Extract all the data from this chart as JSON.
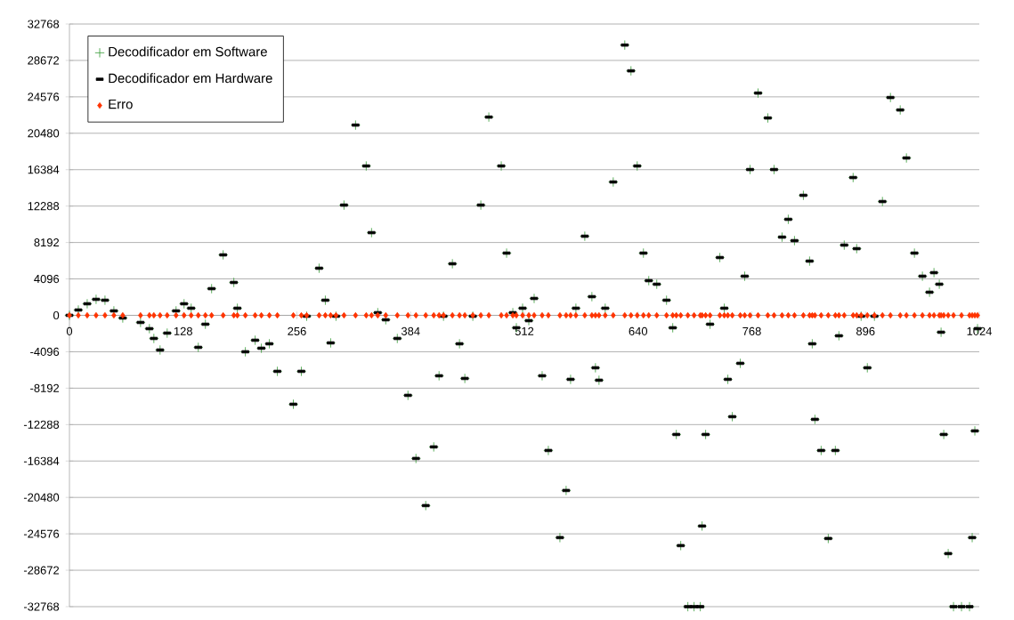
{
  "chart_data": {
    "type": "scatter",
    "x": [
      0,
      10,
      20,
      30,
      40,
      50,
      60,
      80,
      90,
      95,
      102,
      110,
      120,
      129,
      137,
      145,
      153,
      160,
      173,
      185,
      189,
      198,
      209,
      216,
      225,
      234,
      252,
      261,
      267,
      281,
      288,
      294,
      300,
      309,
      322,
      334,
      340,
      347,
      356,
      369,
      381,
      390,
      401,
      410,
      416,
      421,
      431,
      439,
      445,
      454,
      463,
      472,
      486,
      492,
      499,
      503,
      510,
      517,
      523,
      532,
      539,
      552,
      559,
      564,
      570,
      580,
      588,
      592,
      596,
      603,
      612,
      625,
      632,
      639,
      646,
      652,
      661,
      672,
      679,
      683,
      688,
      696,
      703,
      710,
      712,
      716,
      721,
      732,
      737,
      741,
      746,
      755,
      760,
      766,
      775,
      786,
      793,
      802,
      809,
      816,
      826,
      833,
      836,
      839,
      846,
      854,
      862,
      866,
      872,
      882,
      886,
      891,
      898,
      906,
      915,
      924,
      935,
      942,
      951,
      960,
      968,
      973,
      979,
      981,
      984,
      989,
      995,
      1004,
      1013,
      1016,
      1019,
      1022
    ],
    "series": [
      {
        "name": "Decodificador em Software",
        "color": "#339933",
        "marker": "cross",
        "values": [
          0,
          600,
          1300,
          1800,
          1700,
          500,
          -300,
          -800,
          -1500,
          -2600,
          -3900,
          -2000,
          500,
          1300,
          800,
          -3600,
          -1000,
          3000,
          6800,
          3700,
          800,
          -4100,
          -2800,
          -3700,
          -3200,
          -6300,
          -10000,
          -6300,
          -100,
          5300,
          1700,
          -3100,
          -100,
          12400,
          21400,
          16800,
          9300,
          300,
          -500,
          -2600,
          -9000,
          -16100,
          -21400,
          -14800,
          -6800,
          -100,
          5800,
          -3200,
          -7100,
          -100,
          12400,
          22300,
          16800,
          7000,
          300,
          -1400,
          800,
          -600,
          1900,
          -6800,
          -15200,
          -25000,
          -19700,
          -7200,
          800,
          8900,
          2100,
          -5900,
          -7300,
          800,
          15000,
          30400,
          27500,
          16800,
          7000,
          3900,
          3500,
          1700,
          -1400,
          -13400,
          -25900,
          -32768,
          -32768,
          -32768,
          -23700,
          -13400,
          -1000,
          6500,
          800,
          -7200,
          -11400,
          -5400,
          4400,
          16400,
          25000,
          22200,
          16400,
          8800,
          10800,
          8400,
          13500,
          6100,
          -3200,
          -11700,
          -15200,
          -25100,
          -15200,
          -2300,
          7900,
          15500,
          7500,
          -100,
          -5900,
          -100,
          12800,
          24500,
          23100,
          17700,
          7000,
          4400,
          2600,
          4800,
          3500,
          -1900,
          -13400,
          -26800,
          -32768,
          -32768,
          -32768,
          -25000,
          -13000,
          -1500
        ]
      },
      {
        "name": "Decodificador em Hardware",
        "color": "#000000",
        "marker": "square",
        "values": [
          0,
          600,
          1300,
          1800,
          1700,
          500,
          -300,
          -800,
          -1500,
          -2600,
          -3900,
          -2000,
          500,
          1300,
          800,
          -3600,
          -1000,
          3000,
          6800,
          3700,
          800,
          -4100,
          -2800,
          -3700,
          -3200,
          -6300,
          -10000,
          -6300,
          -100,
          5300,
          1700,
          -3100,
          -100,
          12400,
          21400,
          16800,
          9300,
          300,
          -500,
          -2600,
          -9000,
          -16100,
          -21400,
          -14800,
          -6800,
          -100,
          5800,
          -3200,
          -7100,
          -100,
          12400,
          22300,
          16800,
          7000,
          300,
          -1400,
          800,
          -600,
          1900,
          -6800,
          -15200,
          -25000,
          -19700,
          -7200,
          800,
          8900,
          2100,
          -5900,
          -7300,
          800,
          15000,
          30400,
          27500,
          16800,
          7000,
          3900,
          3500,
          1700,
          -1400,
          -13400,
          -25900,
          -32768,
          -32768,
          -32768,
          -23700,
          -13400,
          -1000,
          6500,
          800,
          -7200,
          -11400,
          -5400,
          4400,
          16400,
          25000,
          22200,
          16400,
          8800,
          10800,
          8400,
          13500,
          6100,
          -3200,
          -11700,
          -15200,
          -25100,
          -15200,
          -2300,
          7900,
          15500,
          7500,
          -100,
          -5900,
          -100,
          12800,
          24500,
          23100,
          17700,
          7000,
          4400,
          2600,
          4800,
          3500,
          -1900,
          -13400,
          -26800,
          -32768,
          -32768,
          -32768,
          -25000,
          -13000,
          -1500
        ]
      },
      {
        "name": "Erro",
        "color": "#ff3300",
        "marker": "diamond",
        "values": [
          0,
          0,
          0,
          0,
          0,
          0,
          0,
          0,
          0,
          0,
          0,
          0,
          0,
          0,
          0,
          0,
          0,
          0,
          0,
          0,
          0,
          0,
          0,
          0,
          0,
          0,
          0,
          0,
          0,
          0,
          0,
          0,
          0,
          0,
          0,
          0,
          0,
          0,
          0,
          0,
          0,
          0,
          0,
          0,
          0,
          0,
          0,
          0,
          0,
          0,
          0,
          0,
          0,
          0,
          0,
          0,
          0,
          0,
          0,
          0,
          0,
          0,
          0,
          0,
          0,
          0,
          0,
          0,
          0,
          0,
          0,
          0,
          0,
          0,
          0,
          0,
          0,
          0,
          0,
          0,
          0,
          0,
          0,
          0,
          0,
          0,
          0,
          0,
          0,
          0,
          0,
          0,
          0,
          0,
          0,
          0,
          0,
          0,
          0,
          0,
          0,
          0,
          0,
          0,
          0,
          0,
          0,
          0,
          0,
          0,
          0,
          0,
          0,
          0,
          0,
          0,
          0,
          0,
          0,
          0,
          0,
          0,
          0,
          0,
          0,
          0,
          0,
          0,
          0,
          0,
          0,
          0
        ]
      }
    ],
    "xlim": [
      0,
      1024
    ],
    "xticks": [
      0,
      128,
      256,
      384,
      512,
      640,
      768,
      896,
      1024
    ],
    "ylim": [
      -32768,
      32768
    ],
    "yticks": [
      -32768,
      -28672,
      -24576,
      -20480,
      -16384,
      -12288,
      -8192,
      -4096,
      0,
      4096,
      8192,
      12288,
      16384,
      20480,
      24576,
      28672,
      32768
    ],
    "grid": "y",
    "legend": "top left"
  }
}
